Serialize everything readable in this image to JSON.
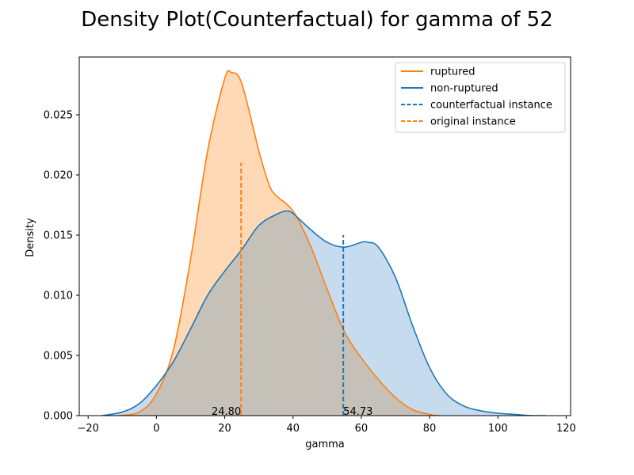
{
  "chart_data": {
    "type": "area",
    "title": "Density Plot(Counterfactual) for gamma of 52",
    "xlabel": "gamma",
    "ylabel": "Density",
    "xlim": [
      -22.6,
      121.3
    ],
    "ylim": [
      0,
      0.0298
    ],
    "xticks": [
      -20,
      0,
      20,
      40,
      60,
      80,
      100,
      120
    ],
    "yticks": [
      0.0,
      0.005,
      0.01,
      0.015,
      0.02,
      0.025
    ],
    "ytick_labels": [
      "0.000",
      "0.005",
      "0.010",
      "0.015",
      "0.020",
      "0.025"
    ],
    "grid": false,
    "legend_position": "top-right",
    "colors": {
      "ruptured": "#ff7f0e",
      "non_ruptured": "#1f77b4",
      "ruptured_fill": "#ffd8b6",
      "non_ruptured_fill": "#c6dbed",
      "overlap_fill": "#c5c1b9"
    },
    "series": [
      {
        "name": "ruptured",
        "x": [
          -11,
          -5,
          0,
          5,
          10,
          15,
          20,
          22,
          25,
          30,
          33,
          35,
          40,
          45,
          50,
          55,
          60,
          65,
          70,
          75,
          80,
          83
        ],
        "y": [
          0.0,
          0.0003,
          0.0018,
          0.0055,
          0.013,
          0.022,
          0.028,
          0.0285,
          0.0276,
          0.022,
          0.0192,
          0.0183,
          0.017,
          0.0142,
          0.0105,
          0.007,
          0.0048,
          0.003,
          0.0015,
          0.0005,
          0.0001,
          0.0
        ]
      },
      {
        "name": "non-ruptured",
        "x": [
          -16,
          -10,
          -5,
          0,
          5,
          10,
          15,
          20,
          25,
          30,
          35,
          38,
          40,
          45,
          50,
          55,
          60,
          62,
          65,
          70,
          75,
          80,
          85,
          90,
          95,
          100,
          105,
          110,
          114
        ],
        "y": [
          0.0,
          0.0003,
          0.001,
          0.0025,
          0.0045,
          0.0072,
          0.01,
          0.012,
          0.0138,
          0.0158,
          0.0167,
          0.017,
          0.0168,
          0.0155,
          0.0144,
          0.014,
          0.0144,
          0.0144,
          0.014,
          0.0115,
          0.0075,
          0.004,
          0.0018,
          0.0008,
          0.0004,
          0.0002,
          0.0001,
          0.0,
          0.0
        ]
      }
    ],
    "legend": [
      {
        "label": "ruptured",
        "color": "#ff7f0e",
        "style": "solid"
      },
      {
        "label": "non-ruptured",
        "color": "#1f77b4",
        "style": "solid"
      },
      {
        "label": "counterfactual instance",
        "color": "#1f77b4",
        "style": "dashed"
      },
      {
        "label": "original instance",
        "color": "#ff7f0e",
        "style": "dashed"
      }
    ],
    "vlines": [
      {
        "name": "original instance",
        "x": 24.8,
        "ymax": 0.021,
        "color": "#ff7f0e",
        "label": "24.80"
      },
      {
        "name": "counterfactual instance",
        "x": 54.73,
        "ymax": 0.015,
        "color": "#1f77b4",
        "label": "54.73"
      }
    ]
  }
}
